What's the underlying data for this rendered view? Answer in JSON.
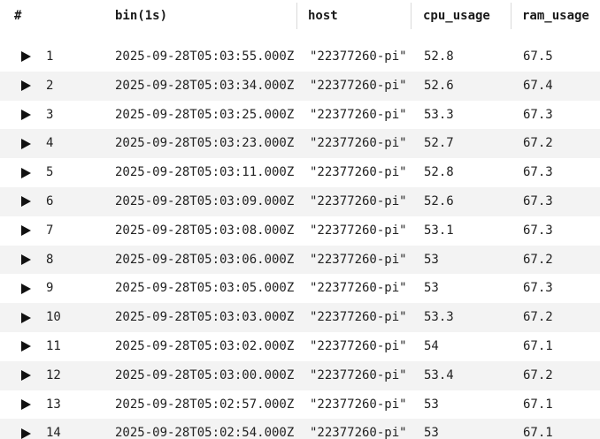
{
  "columns": {
    "index": "#",
    "bin": "bin(1s)",
    "host": "host",
    "cpu": "cpu_usage",
    "ram": "ram_usage"
  },
  "rows": [
    {
      "n": "1",
      "bin": "2025-09-28T05:03:55.000Z",
      "host": "\"22377260-pi\"",
      "cpu": "52.8",
      "ram": "67.5"
    },
    {
      "n": "2",
      "bin": "2025-09-28T05:03:34.000Z",
      "host": "\"22377260-pi\"",
      "cpu": "52.6",
      "ram": "67.4"
    },
    {
      "n": "3",
      "bin": "2025-09-28T05:03:25.000Z",
      "host": "\"22377260-pi\"",
      "cpu": "53.3",
      "ram": "67.3"
    },
    {
      "n": "4",
      "bin": "2025-09-28T05:03:23.000Z",
      "host": "\"22377260-pi\"",
      "cpu": "52.7",
      "ram": "67.2"
    },
    {
      "n": "5",
      "bin": "2025-09-28T05:03:11.000Z",
      "host": "\"22377260-pi\"",
      "cpu": "52.8",
      "ram": "67.3"
    },
    {
      "n": "6",
      "bin": "2025-09-28T05:03:09.000Z",
      "host": "\"22377260-pi\"",
      "cpu": "52.6",
      "ram": "67.3"
    },
    {
      "n": "7",
      "bin": "2025-09-28T05:03:08.000Z",
      "host": "\"22377260-pi\"",
      "cpu": "53.1",
      "ram": "67.3"
    },
    {
      "n": "8",
      "bin": "2025-09-28T05:03:06.000Z",
      "host": "\"22377260-pi\"",
      "cpu": "53",
      "ram": "67.2"
    },
    {
      "n": "9",
      "bin": "2025-09-28T05:03:05.000Z",
      "host": "\"22377260-pi\"",
      "cpu": "53",
      "ram": "67.3"
    },
    {
      "n": "10",
      "bin": "2025-09-28T05:03:03.000Z",
      "host": "\"22377260-pi\"",
      "cpu": "53.3",
      "ram": "67.2"
    },
    {
      "n": "11",
      "bin": "2025-09-28T05:03:02.000Z",
      "host": "\"22377260-pi\"",
      "cpu": "54",
      "ram": "67.1"
    },
    {
      "n": "12",
      "bin": "2025-09-28T05:03:00.000Z",
      "host": "\"22377260-pi\"",
      "cpu": "53.4",
      "ram": "67.2"
    },
    {
      "n": "13",
      "bin": "2025-09-28T05:02:57.000Z",
      "host": "\"22377260-pi\"",
      "cpu": "53",
      "ram": "67.1"
    },
    {
      "n": "14",
      "bin": "2025-09-28T05:02:54.000Z",
      "host": "\"22377260-pi\"",
      "cpu": "53",
      "ram": "67.1"
    }
  ]
}
